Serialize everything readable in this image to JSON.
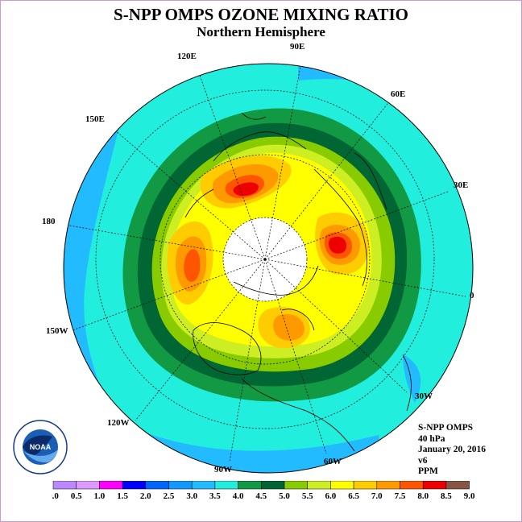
{
  "title": "S-NPP OMPS OZONE MIXING RATIO",
  "subtitle": "Northern Hemisphere",
  "lon_labels": {
    "e90": "90E",
    "e60": "60E",
    "e30": "30E",
    "zero": "0",
    "w30": "30W",
    "w60": "60W",
    "w90": "90W",
    "w120": "120W",
    "w150": "150W",
    "l180": "180",
    "e150": "150E",
    "e120": "120E"
  },
  "info": {
    "product": "S-NPP OMPS",
    "level": "40 hPa",
    "date": "January 20, 2016",
    "version": "v6",
    "units": "PPM"
  },
  "legend": {
    "ticks": [
      "0.0",
      "0.5",
      "1.0",
      "1.5",
      "2.0",
      "2.5",
      "3.0",
      "3.5",
      "4.0",
      "4.5",
      "5.0",
      "5.5",
      "6.0",
      "6.5",
      "7.0",
      "7.5",
      "8.0",
      "8.5",
      "9.0"
    ],
    "colors": [
      "#bb88ff",
      "#dd99ff",
      "#ff00ff",
      "#0000ff",
      "#0066ff",
      "#1199ff",
      "#22bbff",
      "#22eedd",
      "#119944",
      "#006633",
      "#88cc00",
      "#ccee22",
      "#ffff00",
      "#ffcc00",
      "#ff9900",
      "#ff5500",
      "#ee0000",
      "#885544"
    ]
  }
}
